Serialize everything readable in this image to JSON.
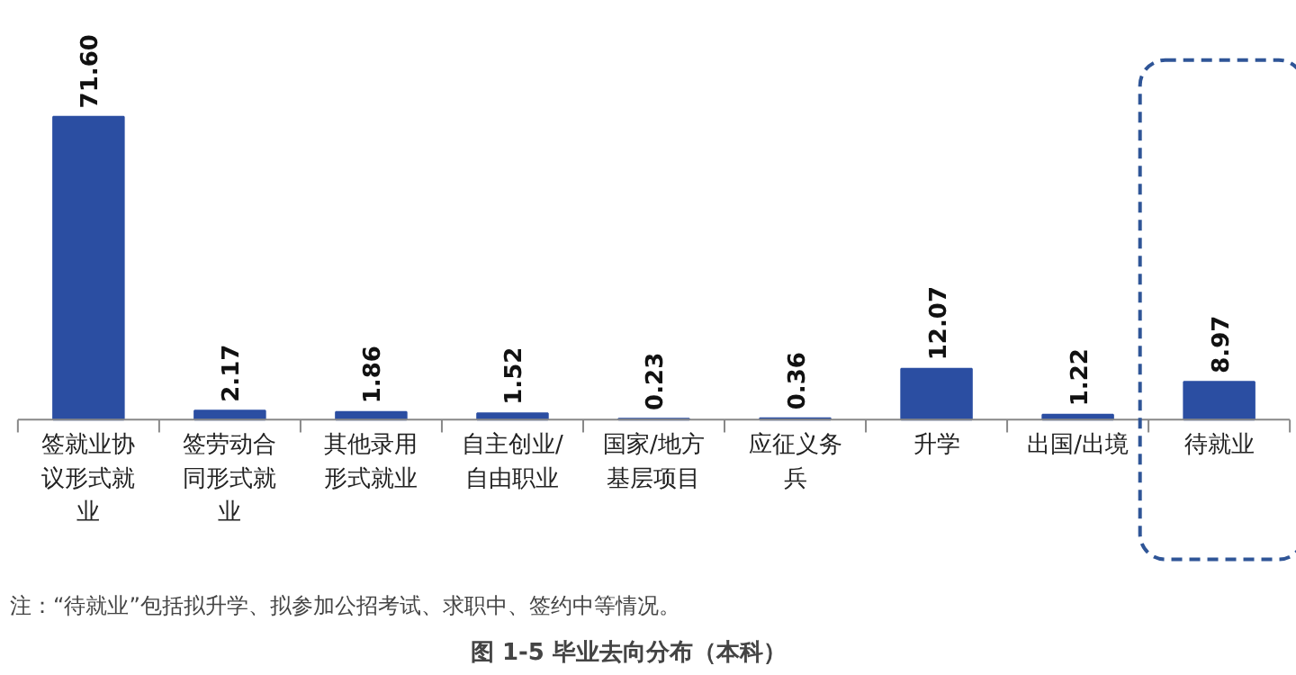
{
  "chart_data": {
    "type": "bar",
    "title": "图 1-5      毕业去向分布（本科）",
    "categories": [
      "签就业协议形式就业",
      "签劳动合同形式就业",
      "其他录用形式就业",
      "自主创业/自由职业",
      "国家/地方基层项目",
      "应征义务兵",
      "升学",
      "出国/出境",
      "待就业"
    ],
    "values": [
      71.6,
      2.17,
      1.86,
      1.52,
      0.23,
      0.36,
      12.07,
      1.22,
      8.97
    ],
    "value_labels": [
      "71.60",
      "2.17",
      "1.86",
      "1.52",
      "0.23",
      "0.36",
      "12.07",
      "1.22",
      "8.97"
    ],
    "color": "#2b4ea2",
    "annotations": [
      "注：“待就业”包括拟升学、拟参加公招考试、求职中、签约中等情况。"
    ]
  }
}
